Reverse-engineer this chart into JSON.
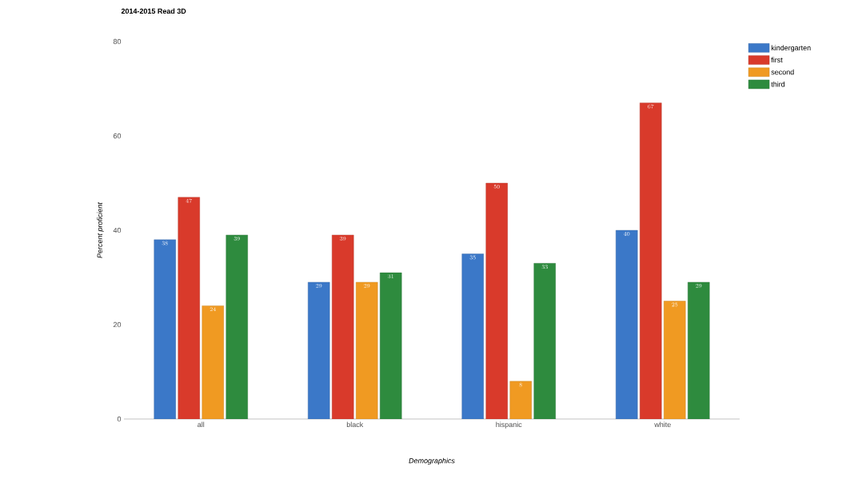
{
  "chart_data": {
    "type": "bar",
    "title": "2014-2015 Read 3D",
    "xlabel": "Demographics",
    "ylabel": "Percent proficient",
    "categories": [
      "all",
      "black",
      "hispanic",
      "white"
    ],
    "series": [
      {
        "name": "kindergarten",
        "color": "#3b78c8",
        "values": [
          38,
          29,
          35,
          40
        ]
      },
      {
        "name": "first",
        "color": "#d93a2b",
        "values": [
          47,
          39,
          50,
          67
        ]
      },
      {
        "name": "second",
        "color": "#f09a22",
        "values": [
          24,
          29,
          8,
          25
        ]
      },
      {
        "name": "third",
        "color": "#2e8b3e",
        "values": [
          39,
          31,
          33,
          29
        ]
      }
    ],
    "ylim": [
      0,
      80
    ],
    "yticks": [
      0,
      20,
      40,
      60,
      80
    ],
    "grid": false,
    "legend": "top right",
    "data_labels": true
  }
}
